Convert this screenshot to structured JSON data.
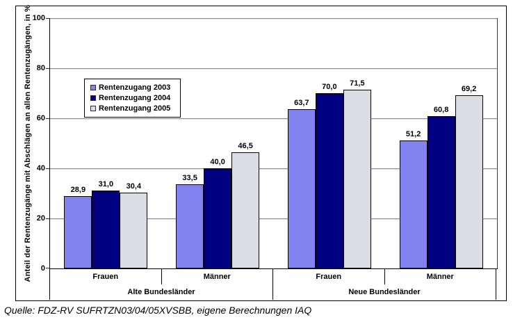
{
  "chart_data": {
    "type": "bar",
    "title": "",
    "ylabel": "Anteil der Rentenzugänge mit Abschlägen an allen Rentenzugängen, in %",
    "xlabel": "",
    "ylim": [
      0,
      100
    ],
    "yticks": [
      0,
      20,
      40,
      60,
      80,
      100
    ],
    "grid": "horizontal",
    "legend_position": "inside-upper-left",
    "categories": [
      "Frauen",
      "Männer",
      "Frauen",
      "Männer"
    ],
    "category_groups": [
      {
        "label": "Alte Bundesländer",
        "span": 2
      },
      {
        "label": "Neue Bundesländer",
        "span": 2
      }
    ],
    "series": [
      {
        "name": "Rentenzugang 2003",
        "color": "#8282F0",
        "values": [
          28.9,
          33.5,
          63.7,
          51.2
        ],
        "labels": [
          "28,9",
          "33,5",
          "63,7",
          "51,2"
        ]
      },
      {
        "name": "Rentenzugang 2004",
        "color": "#000080",
        "values": [
          31.0,
          40.0,
          70.0,
          60.8
        ],
        "labels": [
          "31,0",
          "40,0",
          "70,0",
          "60,8"
        ]
      },
      {
        "name": "Rentenzugang 2005",
        "color": "#DCDCE4",
        "values": [
          30.4,
          46.5,
          71.5,
          69.2
        ],
        "labels": [
          "30,4",
          "46,5",
          "71,5",
          "69,2"
        ]
      }
    ]
  },
  "source_note": "Quelle: FDZ-RV SUFRTZN03/04/05XVSBB, eigene Berechnungen IAQ",
  "colors": {
    "gridline": "#8F8F8F",
    "axis": "#000000",
    "bar_border": "#000000",
    "background": "#FFFFFF"
  }
}
